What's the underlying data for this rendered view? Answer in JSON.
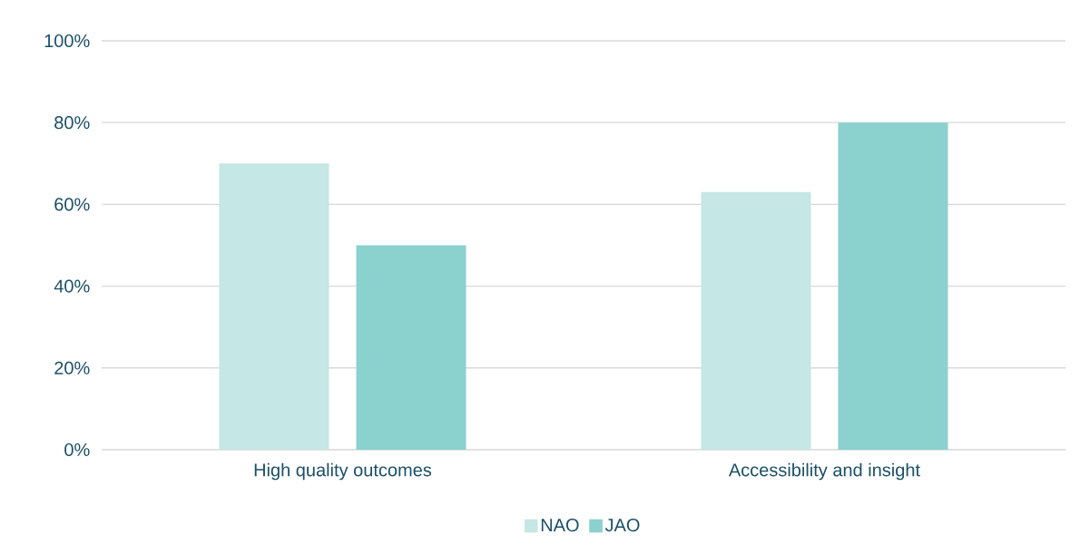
{
  "chart_data": {
    "type": "bar",
    "categories": [
      "High quality outcomes",
      "Accessibility and insight"
    ],
    "series": [
      {
        "name": "NAO",
        "color": "#c5e7e5",
        "values": [
          70,
          63
        ]
      },
      {
        "name": "JAO",
        "color": "#8bd1ce",
        "values": [
          50,
          80
        ]
      }
    ],
    "ylim": [
      0,
      100
    ],
    "yticks": [
      {
        "value": 0,
        "label": "0%"
      },
      {
        "value": 20,
        "label": "20%"
      },
      {
        "value": 40,
        "label": "40%"
      },
      {
        "value": 60,
        "label": "60%"
      },
      {
        "value": 80,
        "label": "80%"
      },
      {
        "value": 100,
        "label": "100%"
      }
    ],
    "grid": "y",
    "legend": "bottom"
  }
}
